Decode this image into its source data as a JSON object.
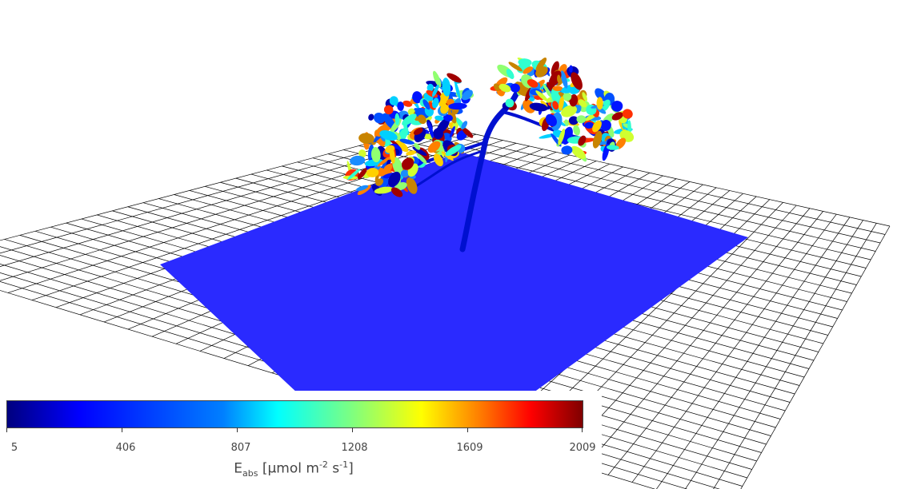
{
  "scene": {
    "ground_color": "#2a2aff",
    "stem_color": "#0010d0",
    "grid_color": "#000000",
    "leaf_palette": [
      "#0000b0",
      "#0014ff",
      "#0050ff",
      "#1a8cff",
      "#00d0ff",
      "#30ffd0",
      "#90ff70",
      "#d0ff30",
      "#ffd000",
      "#ff8000",
      "#c88400",
      "#ff3000",
      "#a00000"
    ]
  },
  "colorbar": {
    "ticks": [
      "5",
      "406",
      "807",
      "1208",
      "1609",
      "2009"
    ],
    "title_main": "E",
    "title_sub": "abs",
    "title_units_pre": " [µmol m",
    "title_sup1": "-2",
    "title_units_mid": " s",
    "title_sup2": "-1",
    "title_units_post": "]"
  }
}
